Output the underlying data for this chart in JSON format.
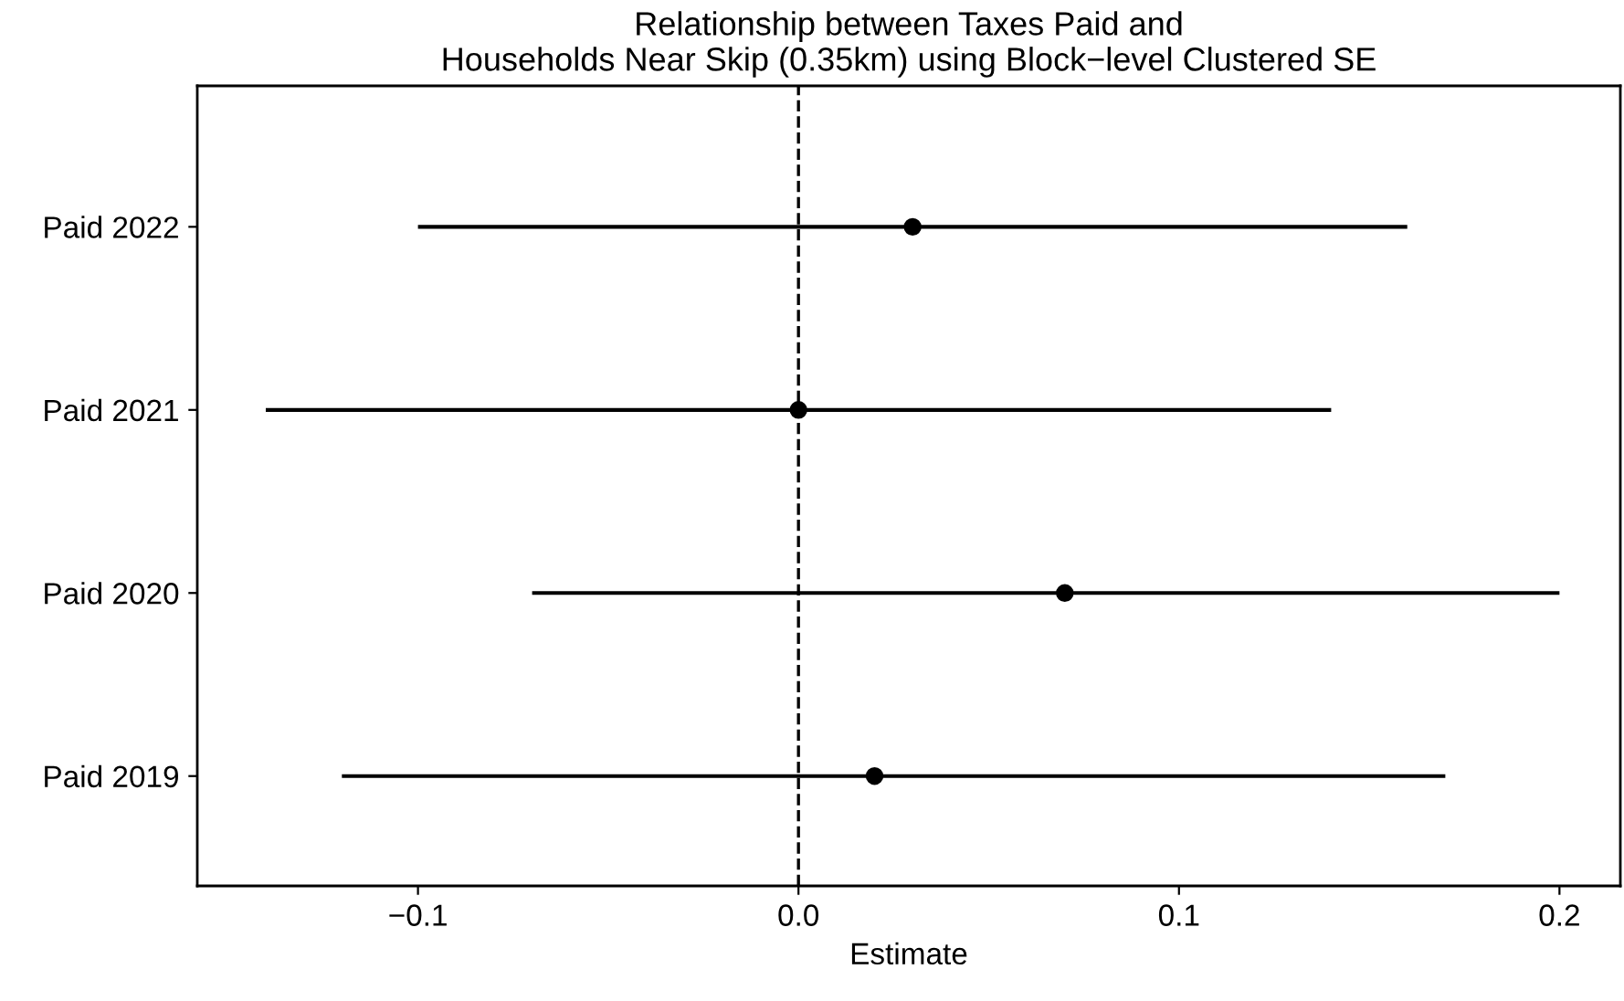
{
  "chart_data": {
    "type": "scatter",
    "orientation": "horizontal",
    "title": "Relationship between Taxes Paid and\nHouseholds Near Skip (0.35km) using Block−level Clustered SE",
    "xlabel": "Estimate",
    "categories": [
      "Paid 2022",
      "Paid 2021",
      "Paid 2020",
      "Paid 2019"
    ],
    "series": [
      {
        "color": "#000000",
        "values": [
          0.03,
          0.0,
          0.07,
          0.02
        ],
        "errors": [
          [
            -0.1,
            0.16
          ],
          [
            -0.14,
            0.14
          ],
          [
            -0.07,
            0.2
          ],
          [
            -0.12,
            0.17
          ]
        ]
      }
    ],
    "xlim": [
      -0.158,
      0.216
    ],
    "xticks": [
      {
        "value": -0.1,
        "label": "−0.1"
      },
      {
        "value": 0.0,
        "label": "0.0"
      },
      {
        "value": 0.1,
        "label": "0.1"
      },
      {
        "value": 0.2,
        "label": "0.2"
      }
    ],
    "ref_lines": [
      {
        "axis": "x",
        "value": 0,
        "line_style": "dashed",
        "color": "#000000"
      }
    ],
    "marker": "circle",
    "grid": false,
    "legend": false
  }
}
